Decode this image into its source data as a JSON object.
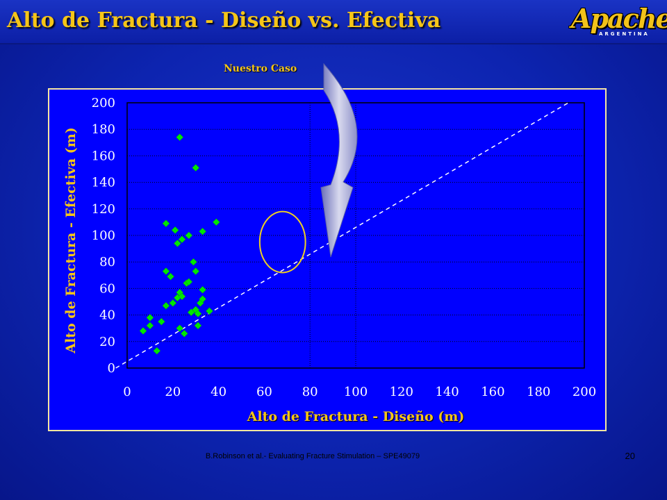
{
  "slide": {
    "title": "Alto de Fractura - Diseño vs. Efectiva",
    "logo_text": "Apache",
    "logo_subtext": "ARGENTINA",
    "footer": "B.Robinson et al.- Evaluating Fracture Stimulation – SPE49079",
    "page_number": "20",
    "callout_label": "Nuestro Caso"
  },
  "colors": {
    "background": "#0d24b0",
    "plot_area": "#0000ff",
    "title": "#f5c518",
    "markers": "#00e600",
    "frame": "#f5e6a0",
    "callout_ellipse": "#f0d020"
  },
  "chart_data": {
    "type": "scatter",
    "xlabel": "Alto de Fractura - Diseño (m)",
    "ylabel": "Alto de Fractura - Efectiva (m)",
    "xlim": [
      0,
      200
    ],
    "ylim": [
      0,
      200
    ],
    "x_ticks": [
      "0",
      "20",
      "40",
      "60",
      "80",
      "100",
      "120",
      "140",
      "160",
      "180",
      "200"
    ],
    "y_ticks": [
      "0",
      "20",
      "40",
      "60",
      "80",
      "100",
      "120",
      "140",
      "160",
      "180",
      "200"
    ],
    "grid": "dotted",
    "marker": "diamond",
    "series": [
      {
        "points": [
          [
            7,
            28
          ],
          [
            10,
            32
          ],
          [
            10,
            38
          ],
          [
            13,
            13
          ],
          [
            15,
            35
          ],
          [
            17,
            109
          ],
          [
            17,
            73
          ],
          [
            17,
            47
          ],
          [
            19,
            69
          ],
          [
            20,
            49
          ],
          [
            21,
            104
          ],
          [
            22,
            94
          ],
          [
            22,
            53
          ],
          [
            23,
            174
          ],
          [
            23,
            57
          ],
          [
            23,
            30
          ],
          [
            24,
            97
          ],
          [
            24,
            54
          ],
          [
            25,
            26
          ],
          [
            26,
            64
          ],
          [
            27,
            100
          ],
          [
            27,
            65
          ],
          [
            28,
            42
          ],
          [
            29,
            80
          ],
          [
            30,
            151
          ],
          [
            30,
            73
          ],
          [
            30,
            44
          ],
          [
            31,
            41
          ],
          [
            31,
            32
          ],
          [
            32,
            49
          ],
          [
            33,
            103
          ],
          [
            33,
            59
          ],
          [
            33,
            52
          ],
          [
            36,
            43
          ],
          [
            39,
            110
          ]
        ]
      }
    ],
    "reference_line": {
      "style": "dashed",
      "from": [
        -5,
        0
      ],
      "to": [
        193,
        200
      ]
    },
    "extra_vertical_line": {
      "x": 100,
      "style": "dotted"
    },
    "callout_ellipse": {
      "center": [
        68,
        95
      ],
      "radius_x": 10,
      "radius_y": 23
    }
  }
}
